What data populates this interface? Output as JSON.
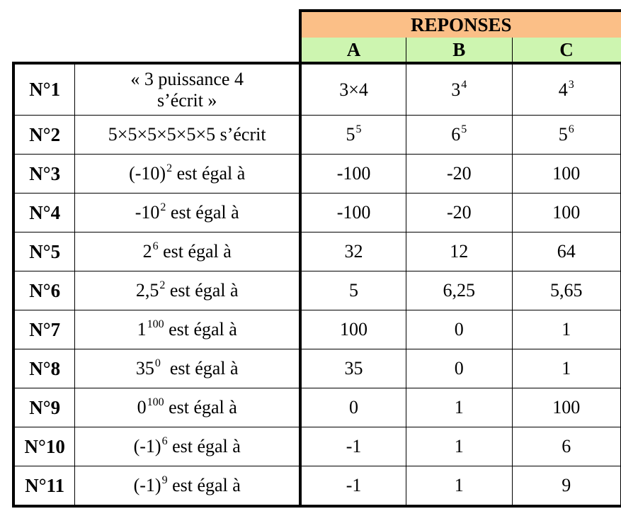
{
  "header": {
    "title": "REPONSES",
    "columns": [
      "A",
      "B",
      "C"
    ]
  },
  "rows": [
    {
      "num": "N°1",
      "q_line1": "« 3 puissance 4",
      "q_line2": "s’écrit »",
      "a": "3×4",
      "b_base": "3",
      "b_exp": "4",
      "c_base": "4",
      "c_exp": "3"
    },
    {
      "num": "N°2",
      "q": "5×5×5×5×5×5 s’écrit",
      "a_base": "5",
      "a_exp": "5",
      "b_base": "6",
      "b_exp": "5",
      "c_base": "5",
      "c_exp": "6"
    },
    {
      "num": "N°3",
      "q_base": "(-10)",
      "q_exp": "2",
      "q_rest": " est égal à",
      "a": "-100",
      "b": "-20",
      "c": "100"
    },
    {
      "num": "N°4",
      "q_base": "-10",
      "q_exp": "2",
      "q_rest": " est égal à",
      "a": "-100",
      "b": "-20",
      "c": "100"
    },
    {
      "num": "N°5",
      "q_base": "2",
      "q_exp": "6",
      "q_rest": " est égal à",
      "a": "32",
      "b": "12",
      "c": "64"
    },
    {
      "num": "N°6",
      "q_base": "2,5",
      "q_exp": "2",
      "q_rest": " est égal à",
      "a": "5",
      "b": "6,25",
      "c": "5,65"
    },
    {
      "num": "N°7",
      "q_base": "1",
      "q_exp": "100",
      "q_rest": " est égal à",
      "a": "100",
      "b": "0",
      "c": "1"
    },
    {
      "num": "N°8",
      "q_base": "35",
      "q_exp": "0",
      "q_rest": "  est égal à",
      "a": "35",
      "b": "0",
      "c": "1"
    },
    {
      "num": "N°9",
      "q_base": "0",
      "q_exp": "100",
      "q_rest": " est égal à",
      "a": "0",
      "b": "1",
      "c": "100"
    },
    {
      "num": "N°10",
      "q_base": "(-1)",
      "q_exp": "6",
      "q_rest": " est égal à",
      "a": "-1",
      "b": "1",
      "c": "6"
    },
    {
      "num": "N°11",
      "q_base": "(-1)",
      "q_exp": "9",
      "q_rest": " est égal à",
      "a": "-1",
      "b": "1",
      "c": "9"
    }
  ]
}
